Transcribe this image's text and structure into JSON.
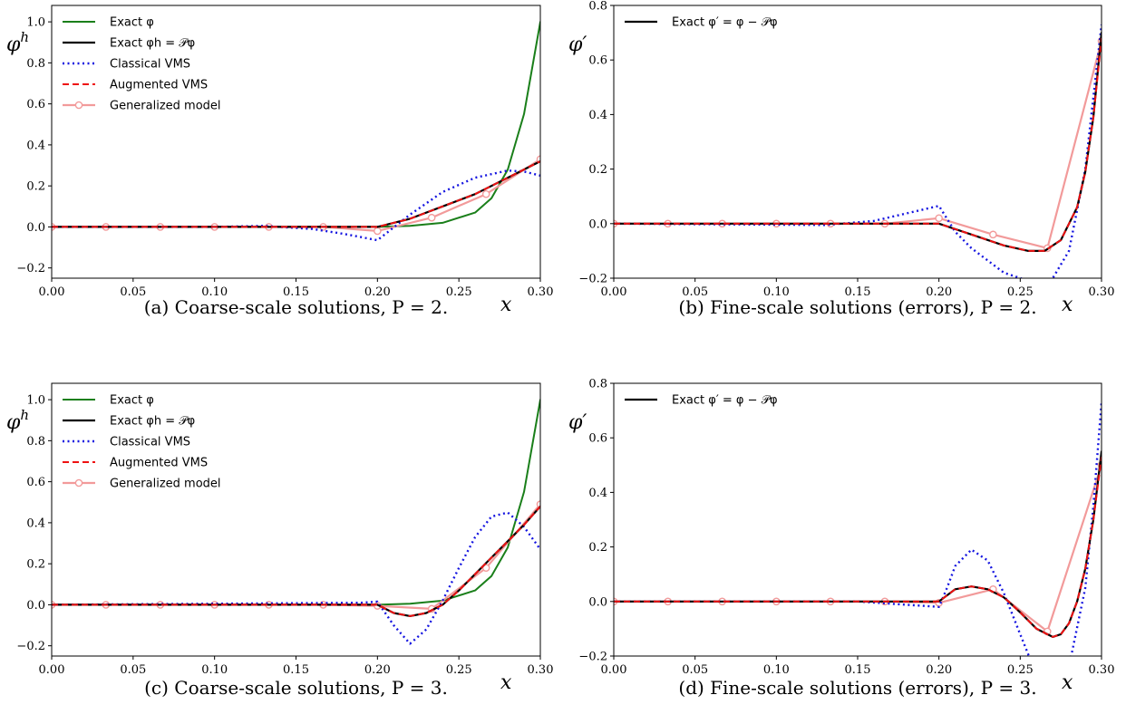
{
  "chart_data": [
    {
      "type": "line",
      "panel": "a",
      "caption": "(a) Coarse-scale solutions, P = 2.",
      "ylabel": "φh",
      "xlabel": "x",
      "xlim": [
        0,
        0.3
      ],
      "ylim": [
        -0.25,
        1.08
      ],
      "xticks": [
        "0.00",
        "0.05",
        "0.10",
        "0.15",
        "0.20",
        "0.25",
        "0.30"
      ],
      "yticks": [
        "−0.2",
        "0.0",
        "0.2",
        "0.4",
        "0.6",
        "0.8",
        "1.0"
      ],
      "ytick_values": [
        -0.2,
        0,
        0.2,
        0.4,
        0.6,
        0.8,
        1.0
      ],
      "legend_position": "top-left",
      "legend": [
        "Exact φ",
        "Exact φh = 𝒫φ",
        "Classical VMS",
        "Augmented VMS",
        "Generalized model"
      ],
      "series": [
        {
          "name": "Exact φ",
          "style": "green-solid",
          "x": [
            0,
            0.2,
            0.22,
            0.24,
            0.26,
            0.27,
            0.28,
            0.29,
            0.3
          ],
          "y": [
            0,
            0,
            0.005,
            0.02,
            0.07,
            0.14,
            0.28,
            0.55,
            1.0
          ]
        },
        {
          "name": "Exact φh = 𝒫φ",
          "style": "black-solid",
          "x": [
            0,
            0.2,
            0.22,
            0.24,
            0.26,
            0.28,
            0.3
          ],
          "y": [
            0,
            0,
            0.04,
            0.1,
            0.16,
            0.24,
            0.32
          ]
        },
        {
          "name": "Classical VMS",
          "style": "blue-dotted",
          "x": [
            0,
            0.1,
            0.13,
            0.16,
            0.18,
            0.2,
            0.22,
            0.24,
            0.26,
            0.28,
            0.29,
            0.3
          ],
          "y": [
            0,
            0,
            0.005,
            -0.01,
            -0.035,
            -0.065,
            0.06,
            0.17,
            0.24,
            0.275,
            0.27,
            0.25
          ]
        },
        {
          "name": "Augmented VMS",
          "style": "red-dashed",
          "x": [
            0,
            0.2,
            0.22,
            0.24,
            0.26,
            0.28,
            0.3
          ],
          "y": [
            0,
            0,
            0.04,
            0.1,
            0.16,
            0.24,
            0.32
          ]
        },
        {
          "name": "Generalized model",
          "style": "pink-circle",
          "x": [
            0,
            0.0333,
            0.0667,
            0.1,
            0.1333,
            0.1667,
            0.2,
            0.2333,
            0.2667,
            0.3
          ],
          "y": [
            0,
            0,
            0,
            0,
            0,
            0,
            -0.02,
            0.045,
            0.16,
            0.33
          ]
        }
      ]
    },
    {
      "type": "line",
      "panel": "b",
      "caption": "(b) Fine-scale solutions (errors), P = 2.",
      "ylabel": "φ′",
      "xlabel": "x",
      "xlim": [
        0,
        0.3
      ],
      "ylim": [
        -0.2,
        0.8
      ],
      "xticks": [
        "0.00",
        "0.05",
        "0.10",
        "0.15",
        "0.20",
        "0.25",
        "0.30"
      ],
      "yticks": [
        "−0.2",
        "0.0",
        "0.2",
        "0.4",
        "0.6",
        "0.8"
      ],
      "ytick_values": [
        -0.2,
        0,
        0.2,
        0.4,
        0.6,
        0.8
      ],
      "legend_position": "top-left",
      "legend": [
        "Exact φ′ = φ − 𝒫φ"
      ],
      "series": [
        {
          "name": "Exact φ′ = φ − 𝒫φ",
          "style": "black-solid",
          "x": [
            0,
            0.2,
            0.22,
            0.24,
            0.255,
            0.265,
            0.275,
            0.285,
            0.29,
            0.295,
            0.3
          ],
          "y": [
            0,
            0,
            -0.04,
            -0.08,
            -0.1,
            -0.1,
            -0.06,
            0.06,
            0.19,
            0.39,
            0.7
          ]
        },
        {
          "name": "Classical VMS",
          "style": "blue-dotted",
          "x": [
            0,
            0.13,
            0.16,
            0.2,
            0.21,
            0.22,
            0.24,
            0.26,
            0.27,
            0.28,
            0.29,
            0.3
          ],
          "y": [
            0,
            -0.005,
            0.01,
            0.065,
            -0.03,
            -0.09,
            -0.18,
            -0.22,
            -0.2,
            -0.1,
            0.2,
            0.73
          ]
        },
        {
          "name": "Augmented VMS",
          "style": "red-dashed",
          "x": [
            0,
            0.2,
            0.22,
            0.24,
            0.255,
            0.265,
            0.275,
            0.285,
            0.29,
            0.295,
            0.3
          ],
          "y": [
            0,
            0,
            -0.04,
            -0.08,
            -0.1,
            -0.1,
            -0.06,
            0.06,
            0.19,
            0.39,
            0.68
          ]
        },
        {
          "name": "Generalized model",
          "style": "pink-circle",
          "x": [
            0,
            0.0333,
            0.0667,
            0.1,
            0.1333,
            0.1667,
            0.2,
            0.2333,
            0.2667,
            0.3
          ],
          "y": [
            0,
            0,
            0,
            0,
            0,
            0,
            0.02,
            -0.04,
            -0.09,
            0.67
          ]
        }
      ]
    },
    {
      "type": "line",
      "panel": "c",
      "caption": "(c) Coarse-scale solutions, P = 3.",
      "ylabel": "φh",
      "xlabel": "x",
      "xlim": [
        0,
        0.3
      ],
      "ylim": [
        -0.25,
        1.08
      ],
      "xticks": [
        "0.00",
        "0.05",
        "0.10",
        "0.15",
        "0.20",
        "0.25",
        "0.30"
      ],
      "yticks": [
        "−0.2",
        "0.0",
        "0.2",
        "0.4",
        "0.6",
        "0.8",
        "1.0"
      ],
      "ytick_values": [
        -0.2,
        0,
        0.2,
        0.4,
        0.6,
        0.8,
        1.0
      ],
      "legend_position": "top-left",
      "legend": [
        "Exact φ",
        "Exact φh = 𝒫φ",
        "Classical VMS",
        "Augmented VMS",
        "Generalized model"
      ],
      "series": [
        {
          "name": "Exact φ",
          "style": "green-solid",
          "x": [
            0,
            0.2,
            0.22,
            0.24,
            0.26,
            0.27,
            0.28,
            0.29,
            0.3
          ],
          "y": [
            0,
            0,
            0.005,
            0.02,
            0.07,
            0.14,
            0.28,
            0.55,
            1.0
          ]
        },
        {
          "name": "Exact φh = 𝒫φ",
          "style": "black-solid",
          "x": [
            0,
            0.2,
            0.21,
            0.22,
            0.23,
            0.24,
            0.25,
            0.26,
            0.27,
            0.28,
            0.29,
            0.3
          ],
          "y": [
            0,
            0,
            -0.04,
            -0.055,
            -0.04,
            0.0,
            0.07,
            0.15,
            0.23,
            0.31,
            0.39,
            0.48
          ]
        },
        {
          "name": "Classical VMS",
          "style": "blue-dotted",
          "x": [
            0,
            0.19,
            0.2,
            0.21,
            0.22,
            0.23,
            0.24,
            0.25,
            0.26,
            0.27,
            0.28,
            0.29,
            0.3
          ],
          "y": [
            0,
            0.01,
            0.015,
            -0.1,
            -0.19,
            -0.12,
            0.02,
            0.18,
            0.33,
            0.43,
            0.45,
            0.38,
            0.27
          ]
        },
        {
          "name": "Augmented VMS",
          "style": "red-dashed",
          "x": [
            0,
            0.2,
            0.21,
            0.22,
            0.23,
            0.24,
            0.25,
            0.26,
            0.27,
            0.28,
            0.29,
            0.3
          ],
          "y": [
            0,
            0,
            -0.04,
            -0.055,
            -0.04,
            0.0,
            0.07,
            0.15,
            0.23,
            0.31,
            0.39,
            0.48
          ]
        },
        {
          "name": "Generalized model",
          "style": "pink-circle",
          "x": [
            0,
            0.0333,
            0.0667,
            0.1,
            0.1333,
            0.1667,
            0.2,
            0.2333,
            0.2667,
            0.3
          ],
          "y": [
            0,
            0,
            0,
            0,
            0,
            0,
            -0.005,
            -0.02,
            0.18,
            0.49
          ]
        }
      ]
    },
    {
      "type": "line",
      "panel": "d",
      "caption": "(d) Fine-scale solutions (errors), P = 3.",
      "ylabel": "φ′",
      "xlabel": "x",
      "xlim": [
        0,
        0.3
      ],
      "ylim": [
        -0.2,
        0.8
      ],
      "xticks": [
        "0.00",
        "0.05",
        "0.10",
        "0.15",
        "0.20",
        "0.25",
        "0.30"
      ],
      "yticks": [
        "−0.2",
        "0.0",
        "0.2",
        "0.4",
        "0.6",
        "0.8"
      ],
      "ytick_values": [
        -0.2,
        0,
        0.2,
        0.4,
        0.6,
        0.8
      ],
      "legend_position": "top-left",
      "legend": [
        "Exact φ′ = φ − 𝒫φ"
      ],
      "series": [
        {
          "name": "Exact φ′ = φ − 𝒫φ",
          "style": "black-solid",
          "x": [
            0,
            0.2,
            0.21,
            0.22,
            0.23,
            0.24,
            0.25,
            0.26,
            0.27,
            0.275,
            0.28,
            0.285,
            0.29,
            0.295,
            0.3
          ],
          "y": [
            0,
            0,
            0.045,
            0.055,
            0.045,
            0.015,
            -0.04,
            -0.1,
            -0.13,
            -0.12,
            -0.08,
            0.0,
            0.12,
            0.3,
            0.55
          ]
        },
        {
          "name": "Classical VMS",
          "style": "blue-dotted",
          "x": [
            0,
            0.15,
            0.2,
            0.205,
            0.21,
            0.22,
            0.23,
            0.24,
            0.25,
            0.26,
            0.27,
            0.28,
            0.29,
            0.295,
            0.3
          ],
          "y": [
            0,
            0,
            -0.02,
            0.05,
            0.13,
            0.19,
            0.15,
            0.03,
            -0.12,
            -0.27,
            -0.34,
            -0.24,
            0.05,
            0.35,
            0.73
          ]
        },
        {
          "name": "Augmented VMS",
          "style": "red-dashed",
          "x": [
            0,
            0.2,
            0.21,
            0.22,
            0.23,
            0.24,
            0.25,
            0.26,
            0.27,
            0.275,
            0.28,
            0.285,
            0.29,
            0.295,
            0.3
          ],
          "y": [
            0,
            0,
            0.045,
            0.055,
            0.045,
            0.015,
            -0.04,
            -0.1,
            -0.13,
            -0.12,
            -0.08,
            0.0,
            0.12,
            0.3,
            0.53
          ]
        },
        {
          "name": "Generalized model",
          "style": "pink-circle",
          "x": [
            0,
            0.0333,
            0.0667,
            0.1,
            0.1333,
            0.1667,
            0.2,
            0.2333,
            0.2667,
            0.3
          ],
          "y": [
            0,
            0,
            0,
            0,
            0,
            0,
            -0.005,
            0.045,
            -0.11,
            0.5
          ]
        }
      ]
    }
  ]
}
